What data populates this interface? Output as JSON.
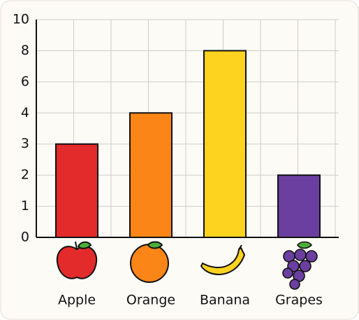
{
  "chart_data": {
    "type": "bar",
    "categories": [
      "Apple",
      "Orange",
      "Banana",
      "Grapes"
    ],
    "values": [
      3,
      4,
      8,
      2
    ],
    "colors": [
      "#e42b2b",
      "#fb8516",
      "#fdd320",
      "#6b3fa0"
    ],
    "ylim": [
      0,
      10
    ],
    "yticks": [
      0,
      1,
      2,
      3,
      4,
      6,
      8,
      10
    ],
    "grid": true
  }
}
